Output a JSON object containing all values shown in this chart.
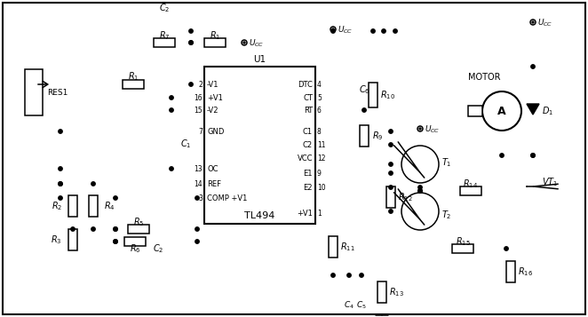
{
  "figsize": [
    6.62,
    3.57
  ],
  "dpi": 100,
  "bg": "#ffffff",
  "lc": "#000000",
  "lw": 1.1,
  "ic_l": 230,
  "ic_t": 75,
  "ic_r": 355,
  "ic_b": 252,
  "pin_left_y": [
    95,
    110,
    124,
    148,
    190,
    207,
    223
  ],
  "pin_left": [
    [
      "-V1",
      "2"
    ],
    [
      "+V1",
      "16"
    ],
    [
      "-V2",
      "15"
    ],
    [
      "GND",
      "7"
    ],
    [
      "OC",
      "13"
    ],
    [
      "REF",
      "14"
    ],
    [
      "COMP +V1",
      "3"
    ]
  ],
  "pin_right_y": [
    95,
    110,
    124,
    148,
    163,
    178,
    195,
    211,
    240
  ],
  "pin_right": [
    [
      "DTC",
      "4"
    ],
    [
      "CT",
      "5"
    ],
    [
      "RT",
      "6"
    ],
    [
      "C1",
      "8"
    ],
    [
      "C2",
      "11"
    ],
    [
      "VCC",
      "12"
    ],
    [
      "E1",
      "9"
    ],
    [
      "E2",
      "10"
    ],
    [
      "+V1",
      "1"
    ]
  ]
}
